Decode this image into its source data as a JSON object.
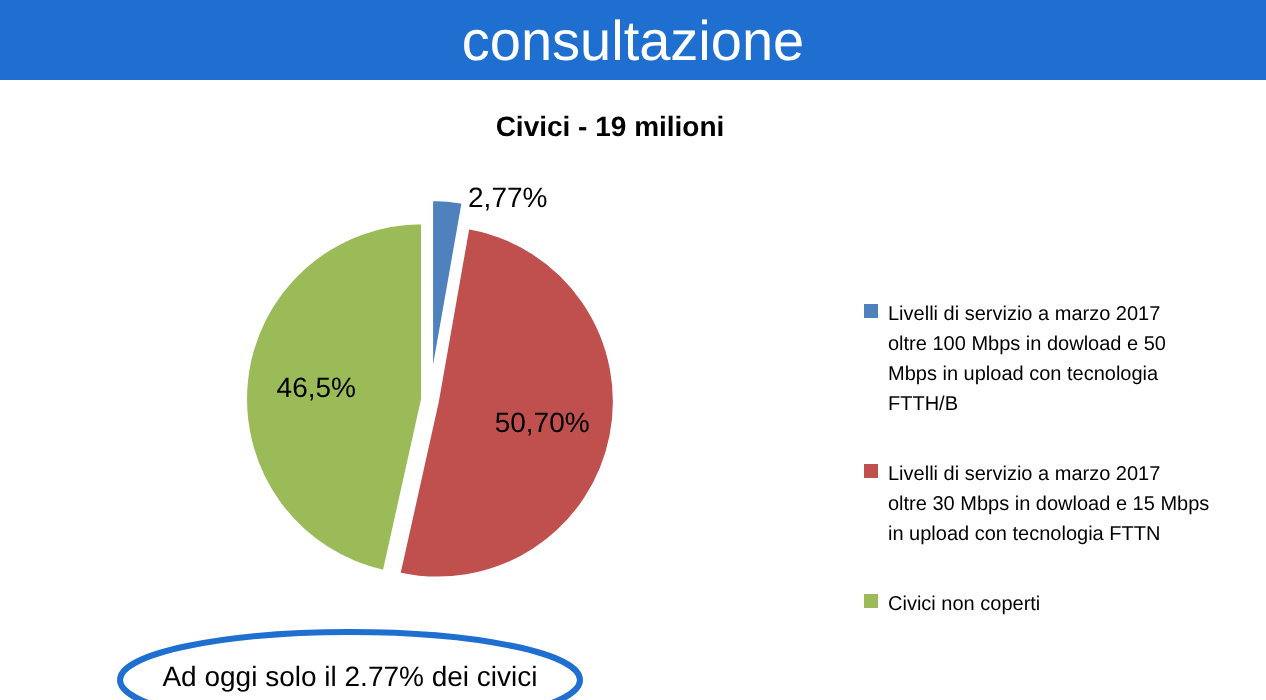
{
  "chart_data": {
    "type": "pie",
    "title": "Civici - 19 milioni",
    "categories": [
      "Livelli di servizio a marzo 2017 oltre 100 Mbps in dowload e 50 Mbps in upload con tecnologia FTTH/B",
      "Livelli di servizio a marzo 2017 oltre 30 Mbps in dowload e 15 Mbps in upload con tecnologia FTTN",
      "Civici non coperti"
    ],
    "values": [
      2.77,
      50.7,
      46.5
    ],
    "value_labels": [
      "2,77%",
      "50,70%",
      "46,5%"
    ],
    "colors": [
      "#4f81bd",
      "#c0504d",
      "#9bbb59"
    ],
    "legend": "right",
    "annotations": [
      "consultazione",
      "Ad oggi solo il 2.77% dei civici"
    ]
  }
}
